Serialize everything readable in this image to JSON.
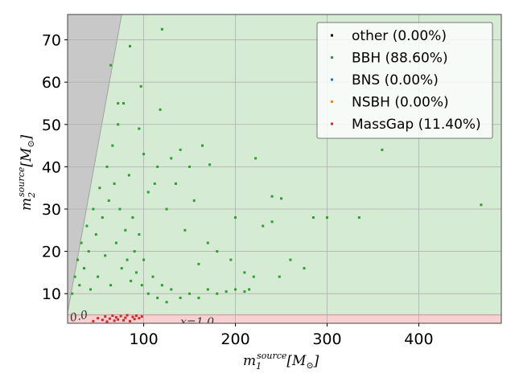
{
  "chart_data": {
    "type": "scatter",
    "title": "",
    "xlabel": "m_1^{source}[M_⊙]",
    "ylabel": "m_2^{source}[M_⊙]",
    "xlabel_parts": {
      "base": "m",
      "sub": "1",
      "sup": "source",
      "tail": "[M",
      "tail_sub": "⊙",
      "close": "]"
    },
    "ylabel_parts": {
      "base": "m",
      "sub": "2",
      "sup": "source",
      "tail": "[M",
      "tail_sub": "⊙",
      "close": "]"
    },
    "xlim": [
      17,
      490
    ],
    "ylim": [
      3,
      76
    ],
    "xticks": [
      "100",
      "200",
      "300",
      "400"
    ],
    "xtick_values": [
      100,
      200,
      300,
      400
    ],
    "yticks": [
      "10",
      "20",
      "30",
      "40",
      "50",
      "60",
      "70"
    ],
    "ytick_values": [
      10,
      20,
      30,
      40,
      50,
      60,
      70
    ],
    "grid": true,
    "legend_placement": "top-right",
    "colors": {
      "bbh_region": "#d5ebd4",
      "massgap_region": "#f7d1d1",
      "excluded_region": "#c8c8c8",
      "grid": "#b0b0b0"
    },
    "region_annotations": [
      "0.0",
      "x=1.0"
    ],
    "series": [
      {
        "name": "other (0.00%)",
        "color": "#000000",
        "points": []
      },
      {
        "name": "BBH (88.60%)",
        "color": "#2ca02c",
        "points": [
          [
            22,
            10
          ],
          [
            25,
            14
          ],
          [
            28,
            18
          ],
          [
            30,
            12
          ],
          [
            32,
            22
          ],
          [
            35,
            16
          ],
          [
            38,
            26
          ],
          [
            40,
            20
          ],
          [
            42,
            11
          ],
          [
            45,
            30
          ],
          [
            48,
            24
          ],
          [
            50,
            14
          ],
          [
            52,
            35
          ],
          [
            55,
            28
          ],
          [
            58,
            19
          ],
          [
            60,
            40
          ],
          [
            62,
            32
          ],
          [
            64,
            12
          ],
          [
            66,
            45
          ],
          [
            68,
            36
          ],
          [
            70,
            22
          ],
          [
            72,
            50
          ],
          [
            74,
            30
          ],
          [
            76,
            16
          ],
          [
            78,
            55
          ],
          [
            80,
            25
          ],
          [
            82,
            18
          ],
          [
            84,
            38
          ],
          [
            86,
            13
          ],
          [
            88,
            28
          ],
          [
            90,
            20
          ],
          [
            92,
            15
          ],
          [
            95,
            24
          ],
          [
            98,
            12
          ],
          [
            100,
            18
          ],
          [
            105,
            10
          ],
          [
            110,
            14
          ],
          [
            115,
            9
          ],
          [
            120,
            12
          ],
          [
            125,
            8
          ],
          [
            130,
            11
          ],
          [
            140,
            9
          ],
          [
            150,
            10
          ],
          [
            160,
            9
          ],
          [
            170,
            11
          ],
          [
            180,
            10
          ],
          [
            190,
            10.5
          ],
          [
            200,
            11
          ],
          [
            210,
            10.5
          ],
          [
            215,
            11
          ],
          [
            64,
            64
          ],
          [
            72,
            55
          ],
          [
            85,
            68.5
          ],
          [
            97,
            59
          ],
          [
            120,
            72.5
          ],
          [
            118,
            53.5
          ],
          [
            95,
            49
          ],
          [
            100,
            43
          ],
          [
            115,
            40
          ],
          [
            130,
            42
          ],
          [
            140,
            44
          ],
          [
            150,
            40
          ],
          [
            172,
            40.5
          ],
          [
            164,
            45
          ],
          [
            200,
            28
          ],
          [
            222,
            42
          ],
          [
            240,
            33
          ],
          [
            250,
            32.5
          ],
          [
            240,
            27
          ],
          [
            285,
            28
          ],
          [
            300,
            28
          ],
          [
            335,
            28
          ],
          [
            360,
            44
          ],
          [
            468,
            31
          ],
          [
            275,
            16
          ],
          [
            248,
            14
          ],
          [
            230,
            26
          ],
          [
            210,
            15
          ],
          [
            180,
            20
          ],
          [
            160,
            17
          ],
          [
            155,
            32
          ],
          [
            135,
            36
          ],
          [
            112,
            36
          ],
          [
            105,
            34
          ],
          [
            125,
            30
          ],
          [
            145,
            25
          ],
          [
            170,
            22
          ],
          [
            195,
            18
          ],
          [
            220,
            14
          ],
          [
            260,
            18
          ]
        ]
      },
      {
        "name": "BNS (0.00%)",
        "color": "#1f77b4",
        "points": []
      },
      {
        "name": "NSBH (0.00%)",
        "color": "#ff7f0e",
        "points": []
      },
      {
        "name": "MassGap (11.40%)",
        "color": "#d62728",
        "points": [
          [
            45,
            3.5
          ],
          [
            50,
            4.2
          ],
          [
            55,
            3.8
          ],
          [
            58,
            4.6
          ],
          [
            60,
            3.4
          ],
          [
            63,
            4.1
          ],
          [
            66,
            4.8
          ],
          [
            68,
            3.6
          ],
          [
            70,
            4.4
          ],
          [
            72,
            3.9
          ],
          [
            75,
            4.7
          ],
          [
            78,
            3.7
          ],
          [
            80,
            4.3
          ],
          [
            82,
            4.9
          ],
          [
            85,
            3.5
          ],
          [
            88,
            4.5
          ],
          [
            90,
            4.0
          ],
          [
            92,
            4.8
          ],
          [
            95,
            4.2
          ],
          [
            98,
            4.6
          ]
        ]
      }
    ]
  }
}
